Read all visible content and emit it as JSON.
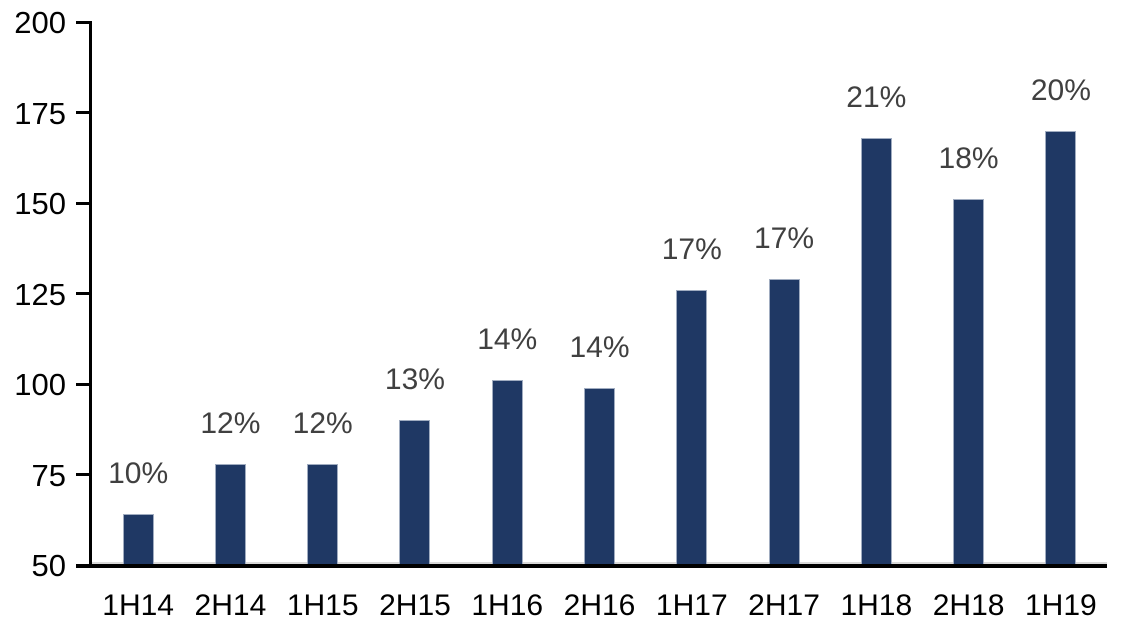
{
  "chart_data": {
    "type": "bar",
    "title": "",
    "xlabel": "",
    "ylabel": "",
    "categories": [
      "1H14",
      "2H14",
      "1H15",
      "2H15",
      "1H16",
      "2H16",
      "1H17",
      "2H17",
      "1H18",
      "2H18",
      "1H19"
    ],
    "values": [
      64,
      78,
      78,
      90,
      101,
      99,
      126,
      129,
      168,
      151,
      170
    ],
    "bar_labels": [
      "10%",
      "12%",
      "12%",
      "13%",
      "14%",
      "14%",
      "17%",
      "17%",
      "21%",
      "18%",
      "20%"
    ],
    "ylim": [
      50,
      200
    ],
    "ytick_step": 25,
    "yticks": [
      50,
      75,
      100,
      125,
      150,
      175,
      200
    ],
    "grid": false,
    "legend": "none",
    "colors": {
      "bar_fill": "#1f3864",
      "bar_border": "#a0acc0",
      "data_label_text": "#404040",
      "axis_text": "#000000",
      "axis_line": "#000000",
      "baseline_highlight": "#d9d9d9",
      "background": "#ffffff"
    }
  }
}
